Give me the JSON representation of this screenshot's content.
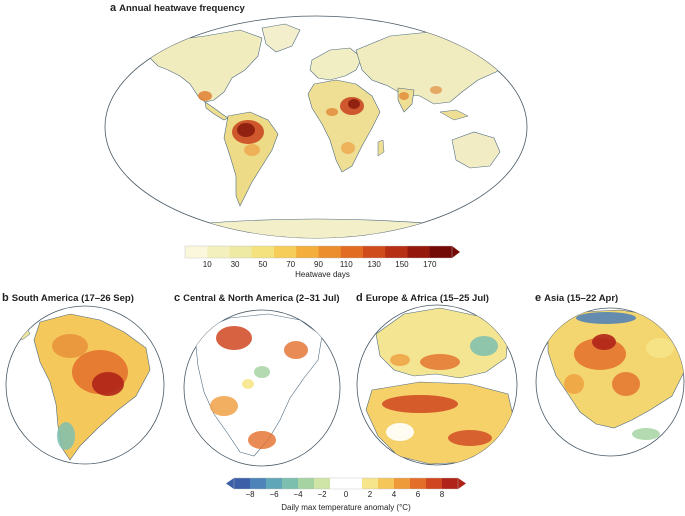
{
  "panels": [
    {
      "letter": "a",
      "title": "Annual heatwave frequency"
    },
    {
      "letter": "b",
      "title": "South America (17–26 Sep)"
    },
    {
      "letter": "c",
      "title": "Central & North America (2–31 Jul)"
    },
    {
      "letter": "d",
      "title": "Europe & Africa (15–25 Jul)"
    },
    {
      "letter": "e",
      "title": "Asia (15–22 Apr)"
    }
  ],
  "colorbar_top": {
    "ticks": [
      "10",
      "30",
      "50",
      "70",
      "90",
      "110",
      "130",
      "150",
      "170"
    ],
    "label": "Heatwave days",
    "colors": [
      "#fbf7dc",
      "#f4f0be",
      "#eee9a3",
      "#f3e27d",
      "#f6cd58",
      "#f3ae3c",
      "#ec8e2d",
      "#e26c22",
      "#cf4b1b",
      "#b62f14",
      "#95180d",
      "#740a08"
    ]
  },
  "colorbar_bottom": {
    "ticks": [
      "−8",
      "−6",
      "−4",
      "−2",
      "0",
      "2",
      "4",
      "6",
      "8"
    ],
    "label": "Daily max temperature anomaly (°C)",
    "colors": [
      "#3d5fa8",
      "#4d83b8",
      "#5fa6b8",
      "#7dbfae",
      "#a6d3a2",
      "#cfe5a7",
      "#ffffff",
      "#ffffff",
      "#f6e58a",
      "#f5c65a",
      "#ef9a3a",
      "#e36e2a",
      "#cf4620",
      "#b02318"
    ]
  },
  "colors": {
    "land_light": "#f3efc6",
    "land_yellow": "#eee396",
    "heat_orange": "#eea043",
    "heat_red": "#c8401c",
    "heat_dark": "#8b1d0e",
    "coast": "#4f6b80",
    "cold_green": "#9fcf9f",
    "cold_blue": "#4b7fb8"
  }
}
